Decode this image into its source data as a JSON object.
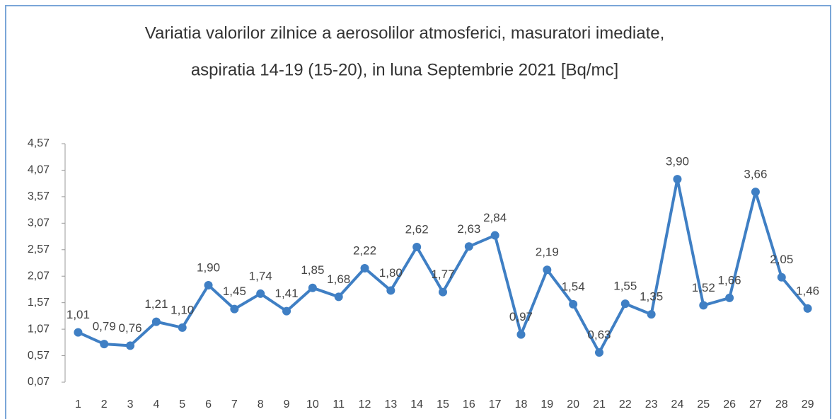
{
  "chart_data": {
    "type": "line",
    "title": [
      "Variatia valorilor zilnice a aerosolilor atmosferici, masuratori imediate,",
      "aspiratia 14-19 (15-20),  in luna Septembrie 2021 [Bq/mc]"
    ],
    "categories": [
      "1",
      "2",
      "3",
      "4",
      "5",
      "6",
      "7",
      "8",
      "9",
      "10",
      "11",
      "12",
      "13",
      "14",
      "15",
      "16",
      "17",
      "18",
      "19",
      "20",
      "21",
      "22",
      "23",
      "24",
      "25",
      "26",
      "27",
      "28",
      "29"
    ],
    "series": [
      {
        "name": null,
        "color": "#3f7fc4",
        "values": [
          1.01,
          0.79,
          0.76,
          1.21,
          1.1,
          1.9,
          1.45,
          1.74,
          1.41,
          1.85,
          1.68,
          2.22,
          1.8,
          2.62,
          1.77,
          2.63,
          2.84,
          0.97,
          2.19,
          1.54,
          0.63,
          1.55,
          1.35,
          3.9,
          1.52,
          1.66,
          3.66,
          2.05,
          1.46
        ],
        "value_labels": [
          "1,01",
          "0,79",
          "0,76",
          "1,21",
          "1,10",
          "1,90",
          "1,45",
          "1,74",
          "1,41",
          "1,85",
          "1,68",
          "2,22",
          "1,80",
          "2,62",
          "1,77",
          "2,63",
          "2,84",
          "0,97",
          "2,19",
          "1,54",
          "0,63",
          "1,55",
          "1,35",
          "3,90",
          "1,52",
          "1,66",
          "3,66",
          "2,05",
          "1,46"
        ]
      }
    ],
    "ylim": [
      0.07,
      4.57
    ],
    "yticks": [
      {
        "value": 0.07,
        "label": "0,07"
      },
      {
        "value": 0.57,
        "label": "0,57"
      },
      {
        "value": 1.07,
        "label": "1,07"
      },
      {
        "value": 1.57,
        "label": "1,57"
      },
      {
        "value": 2.07,
        "label": "2,07"
      },
      {
        "value": 2.57,
        "label": "2,57"
      },
      {
        "value": 3.07,
        "label": "3,07"
      },
      {
        "value": 3.57,
        "label": "3,57"
      },
      {
        "value": 4.07,
        "label": "4,07"
      },
      {
        "value": 4.57,
        "label": "4,57"
      }
    ],
    "grid": false
  }
}
